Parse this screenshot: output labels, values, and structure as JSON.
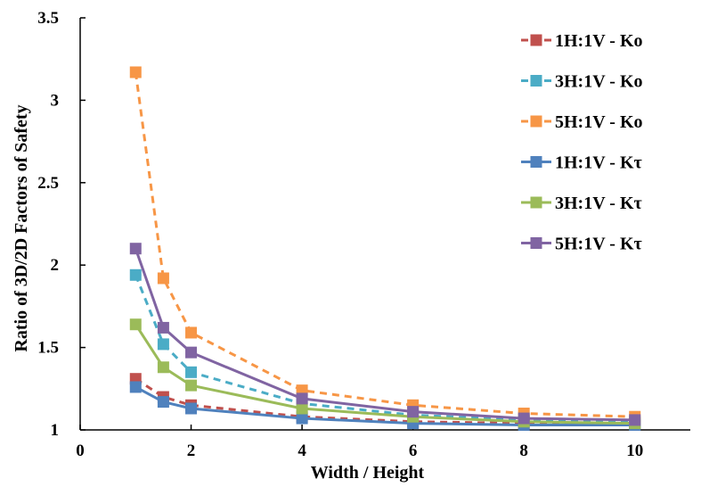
{
  "chart_data": {
    "type": "line",
    "title": "",
    "xlabel": "Width / Height",
    "ylabel": "Ratio of 3D/2D Factors of Safety",
    "xlim": [
      0,
      11
    ],
    "ylim": [
      1,
      3.5
    ],
    "xticks": [
      0,
      2,
      4,
      6,
      8,
      10
    ],
    "yticks": [
      1,
      1.5,
      2,
      2.5,
      3,
      3.5
    ],
    "xtick_labels": [
      "0",
      "2",
      "4",
      "6",
      "8",
      "10"
    ],
    "ytick_labels": [
      "1",
      "1.5",
      "2",
      "2.5",
      "3",
      "3.5"
    ],
    "grid": false,
    "legend_position": "top-right",
    "series": [
      {
        "name": "1H:1V - Ko",
        "color": "#c0504d",
        "dashed": true,
        "x": [
          1,
          1.5,
          2,
          4,
          6,
          8,
          10
        ],
        "y": [
          1.31,
          1.2,
          1.15,
          1.08,
          1.05,
          1.04,
          1.04
        ]
      },
      {
        "name": "3H:1V - Ko",
        "color": "#4bacc6",
        "dashed": true,
        "x": [
          1,
          1.5,
          2,
          4,
          6,
          8,
          10
        ],
        "y": [
          1.94,
          1.52,
          1.35,
          1.16,
          1.09,
          1.06,
          1.05
        ]
      },
      {
        "name": "5H:1V - Ko",
        "color": "#f79646",
        "dashed": true,
        "x": [
          1,
          1.5,
          2,
          4,
          6,
          8,
          10
        ],
        "y": [
          3.17,
          1.92,
          1.59,
          1.24,
          1.15,
          1.1,
          1.08
        ]
      },
      {
        "name": "1H:1V - Kτ",
        "color": "#4f81bd",
        "dashed": false,
        "x": [
          1,
          1.5,
          2,
          4,
          6,
          8,
          10
        ],
        "y": [
          1.26,
          1.17,
          1.13,
          1.07,
          1.04,
          1.03,
          1.03
        ]
      },
      {
        "name": "3H:1V - Kτ",
        "color": "#9bbb59",
        "dashed": false,
        "x": [
          1,
          1.5,
          2,
          4,
          6,
          8,
          10
        ],
        "y": [
          1.64,
          1.38,
          1.27,
          1.13,
          1.08,
          1.05,
          1.04
        ]
      },
      {
        "name": "5H:1V - Kτ",
        "color": "#8064a2",
        "dashed": false,
        "x": [
          1,
          1.5,
          2,
          4,
          6,
          8,
          10
        ],
        "y": [
          2.1,
          1.62,
          1.47,
          1.19,
          1.11,
          1.07,
          1.06
        ]
      }
    ]
  }
}
